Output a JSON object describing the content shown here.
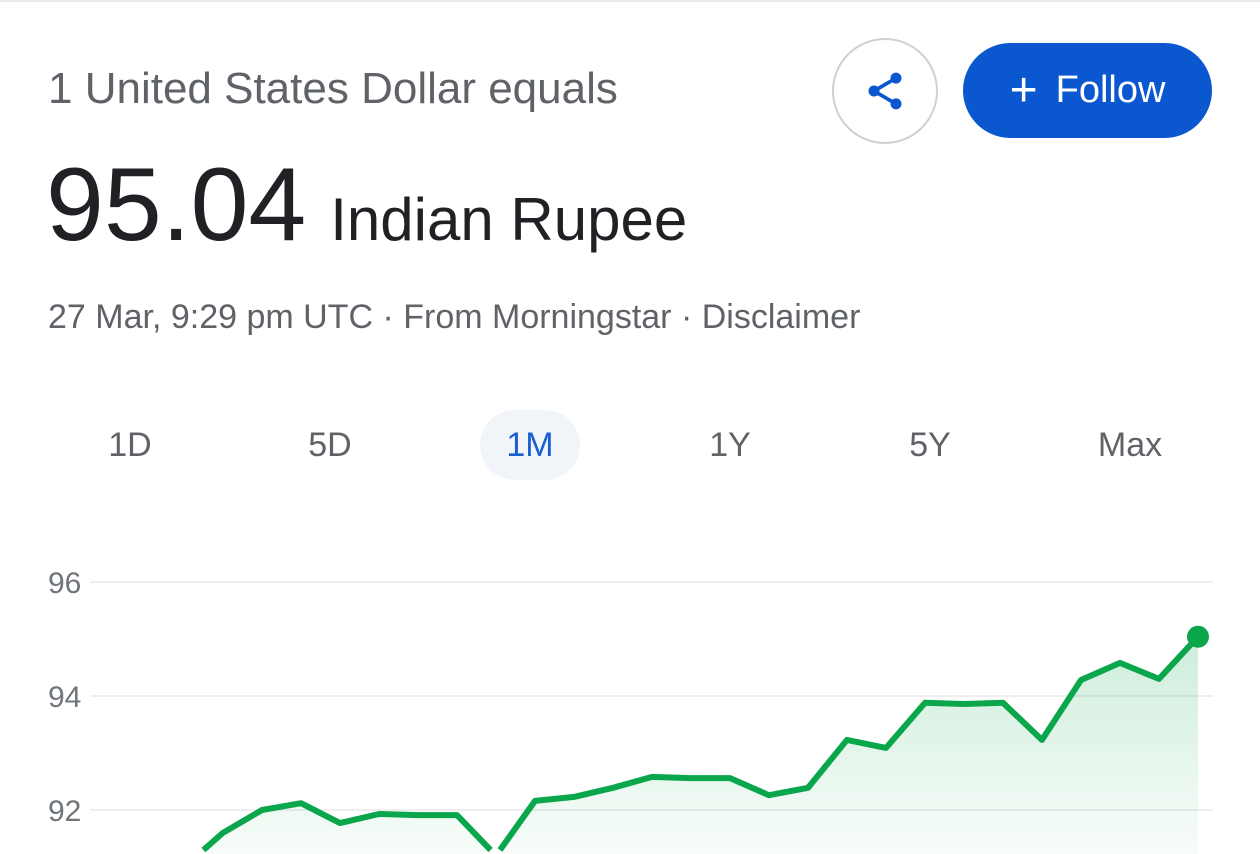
{
  "header": {
    "subtitle": "1 United States Dollar equals",
    "rate_value": "95.04",
    "rate_currency": "Indian Rupee",
    "meta": "27 Mar, 9:29 pm UTC · From Morningstar · Disclaimer",
    "share_icon": "share-icon",
    "follow_label": "Follow",
    "follow_icon": "plus-icon"
  },
  "tabs": [
    {
      "label": "1D",
      "active": false
    },
    {
      "label": "5D",
      "active": false
    },
    {
      "label": "1M",
      "active": true
    },
    {
      "label": "1Y",
      "active": false
    },
    {
      "label": "5Y",
      "active": false
    },
    {
      "label": "Max",
      "active": false
    }
  ],
  "colors": {
    "accent": "#0b57d0",
    "line": "#0aa64b",
    "active_tab_text": "#1a5fd0"
  },
  "chart_data": {
    "type": "area",
    "range": "1M",
    "y_ticks": [
      "96",
      "94",
      "92"
    ],
    "ylim_visible": [
      91.2,
      96.4
    ],
    "grid": true,
    "values": [
      91.0,
      91.6,
      92.0,
      92.12,
      91.77,
      91.93,
      91.91,
      91.91,
      91.2,
      92.16,
      92.23,
      92.39,
      92.58,
      92.56,
      92.56,
      92.26,
      92.39,
      93.23,
      93.09,
      93.88,
      93.86,
      93.88,
      93.23,
      94.28,
      94.58,
      94.3,
      95.04
    ],
    "last_value": 95.04
  }
}
